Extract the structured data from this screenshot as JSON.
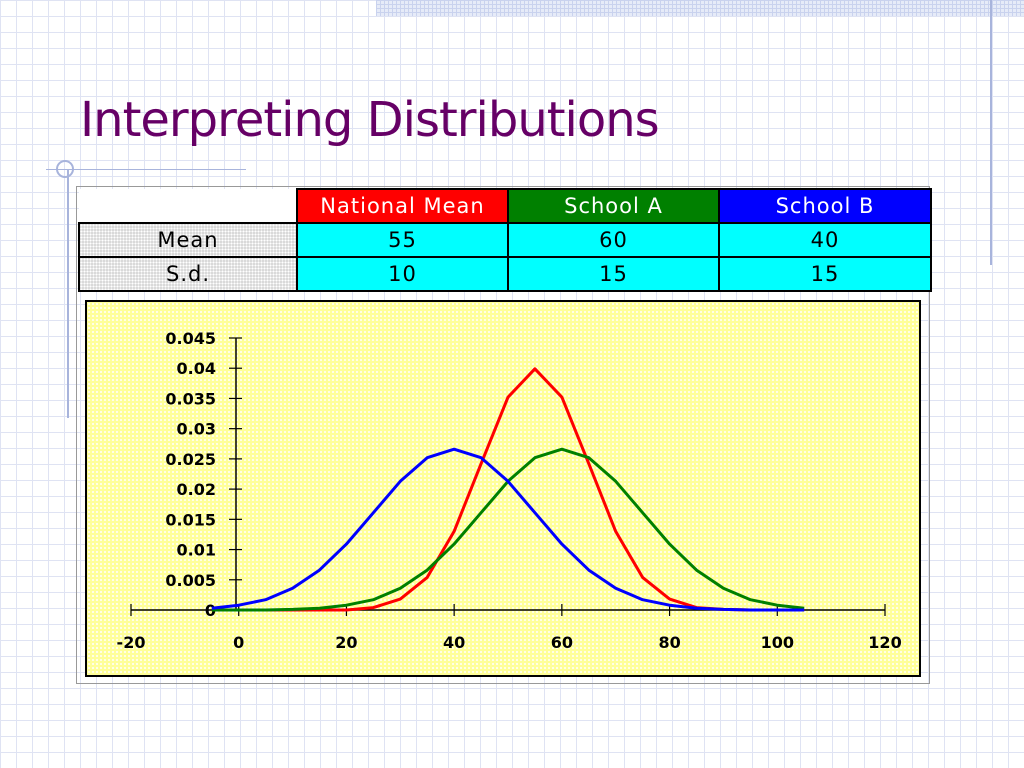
{
  "slide": {
    "title": "Interpreting Distributions"
  },
  "table": {
    "headers": [
      "National Mean",
      "School A",
      "School B"
    ],
    "header_colors": [
      "#ff0000",
      "#008000",
      "#0000ff"
    ],
    "rows": [
      {
        "label": "Mean",
        "values": [
          "55",
          "60",
          "40"
        ]
      },
      {
        "label": "S.d.",
        "values": [
          "10",
          "15",
          "15"
        ]
      }
    ]
  },
  "chart_data": {
    "type": "line",
    "title": "",
    "xlabel": "",
    "ylabel": "",
    "xlim": [
      -20,
      120
    ],
    "ylim": [
      0,
      0.045
    ],
    "x_ticks": [
      "-20",
      "0",
      "20",
      "40",
      "60",
      "80",
      "100",
      "120"
    ],
    "y_ticks": [
      "0",
      "0.005",
      "0.01",
      "0.015",
      "0.02",
      "0.025",
      "0.03",
      "0.035",
      "0.04",
      "0.045"
    ],
    "grid": false,
    "legend": "none",
    "x": [
      -5,
      0,
      5,
      10,
      15,
      20,
      25,
      30,
      35,
      40,
      45,
      50,
      55,
      60,
      65,
      70,
      75,
      80,
      85,
      90,
      95,
      100,
      105
    ],
    "series": [
      {
        "color": "#ff0000",
        "values": [
          0,
          0,
          0,
          0,
          0,
          0,
          0.0004,
          0.0018,
          0.0054,
          0.013,
          0.0242,
          0.0352,
          0.0399,
          0.0352,
          0.0242,
          0.013,
          0.0054,
          0.0018,
          0.0004,
          0.0001,
          0,
          0,
          0
        ]
      },
      {
        "color": "#008000",
        "values": [
          0,
          0,
          0,
          0.0001,
          0.0003,
          0.0008,
          0.0017,
          0.0036,
          0.0066,
          0.0109,
          0.0161,
          0.0213,
          0.0252,
          0.0266,
          0.0252,
          0.0213,
          0.0161,
          0.0109,
          0.0066,
          0.0036,
          0.0017,
          0.0008,
          0.0003
        ]
      },
      {
        "color": "#0000ff",
        "values": [
          0.0003,
          0.0008,
          0.0017,
          0.0036,
          0.0066,
          0.0109,
          0.0161,
          0.0213,
          0.0252,
          0.0266,
          0.0252,
          0.0213,
          0.0161,
          0.0109,
          0.0066,
          0.0036,
          0.0017,
          0.0008,
          0.0003,
          0.0001,
          0,
          0,
          0
        ]
      }
    ]
  }
}
